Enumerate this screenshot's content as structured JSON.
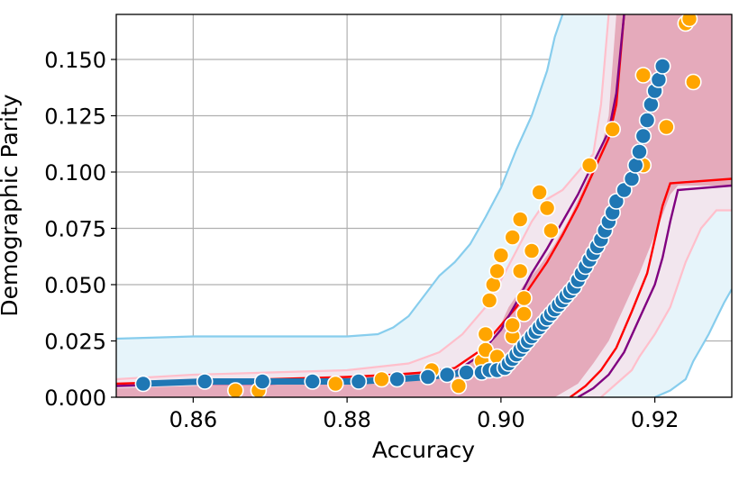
{
  "chart_data": {
    "type": "scatter",
    "title": "",
    "xlabel": "Accuracy",
    "ylabel": "Demographic Parity",
    "xlim": [
      0.85,
      0.93
    ],
    "ylim": [
      0.0,
      0.17
    ],
    "xticks": [
      "0.86",
      "0.88",
      "0.90",
      "0.92"
    ],
    "yticks": [
      "0.000",
      "0.025",
      "0.050",
      "0.075",
      "0.100",
      "0.125",
      "0.150"
    ],
    "grid": true,
    "colors": {
      "outer_band_fill": "#e6f4fa",
      "outer_band_line": "#87cded",
      "mid_band_fill": "#f2e6ee",
      "mid_band_line": "#ffbfcb",
      "inner_band_fill": "#e5aabb",
      "red_line": "#ff0000",
      "purple_line": "#800080",
      "blue_points": "#1f77b4",
      "orange_points": "#ffa500"
    },
    "bands": [
      {
        "id": "outer",
        "upper": [
          [
            0.85,
            0.026
          ],
          [
            0.86,
            0.027
          ],
          [
            0.87,
            0.027
          ],
          [
            0.88,
            0.027
          ],
          [
            0.884,
            0.028
          ],
          [
            0.886,
            0.031
          ],
          [
            0.888,
            0.036
          ],
          [
            0.89,
            0.045
          ],
          [
            0.892,
            0.054
          ],
          [
            0.894,
            0.06
          ],
          [
            0.896,
            0.068
          ],
          [
            0.898,
            0.08
          ],
          [
            0.9,
            0.093
          ],
          [
            0.902,
            0.11
          ],
          [
            0.904,
            0.125
          ],
          [
            0.906,
            0.145
          ],
          [
            0.907,
            0.16
          ],
          [
            0.908,
            0.17
          ]
        ],
        "lower": [
          [
            0.92,
            0.0
          ],
          [
            0.922,
            0.003
          ],
          [
            0.924,
            0.008
          ],
          [
            0.925,
            0.016
          ],
          [
            0.926,
            0.022
          ],
          [
            0.927,
            0.028
          ],
          [
            0.928,
            0.035
          ],
          [
            0.929,
            0.042
          ],
          [
            0.93,
            0.048
          ]
        ]
      },
      {
        "id": "middle",
        "upper": [
          [
            0.85,
            0.008
          ],
          [
            0.86,
            0.01
          ],
          [
            0.87,
            0.011
          ],
          [
            0.88,
            0.012
          ],
          [
            0.888,
            0.015
          ],
          [
            0.892,
            0.02
          ],
          [
            0.895,
            0.028
          ],
          [
            0.898,
            0.04
          ],
          [
            0.9,
            0.052
          ],
          [
            0.902,
            0.065
          ],
          [
            0.904,
            0.078
          ],
          [
            0.906,
            0.088
          ],
          [
            0.908,
            0.092
          ],
          [
            0.91,
            0.1
          ],
          [
            0.912,
            0.108
          ],
          [
            0.913,
            0.13
          ],
          [
            0.914,
            0.17
          ]
        ],
        "lower": [
          [
            0.913,
            0.0
          ],
          [
            0.915,
            0.006
          ],
          [
            0.917,
            0.012
          ],
          [
            0.918,
            0.018
          ],
          [
            0.92,
            0.028
          ],
          [
            0.922,
            0.04
          ],
          [
            0.924,
            0.06
          ],
          [
            0.926,
            0.075
          ],
          [
            0.928,
            0.083
          ],
          [
            0.93,
            0.083
          ]
        ]
      },
      {
        "id": "inner",
        "upper": [
          [
            0.85,
            0.004
          ],
          [
            0.86,
            0.005
          ],
          [
            0.87,
            0.007
          ],
          [
            0.88,
            0.009
          ],
          [
            0.888,
            0.011
          ],
          [
            0.894,
            0.012
          ],
          [
            0.897,
            0.018
          ],
          [
            0.899,
            0.025
          ],
          [
            0.901,
            0.04
          ],
          [
            0.903,
            0.05
          ],
          [
            0.905,
            0.058
          ],
          [
            0.907,
            0.068
          ],
          [
            0.909,
            0.08
          ],
          [
            0.911,
            0.095
          ],
          [
            0.913,
            0.11
          ],
          [
            0.914,
            0.125
          ],
          [
            0.915,
            0.17
          ]
        ],
        "lower": [
          [
            0.907,
            0.0
          ],
          [
            0.91,
            0.006
          ],
          [
            0.912,
            0.015
          ],
          [
            0.914,
            0.025
          ],
          [
            0.916,
            0.04
          ],
          [
            0.918,
            0.055
          ],
          [
            0.92,
            0.072
          ],
          [
            0.922,
            0.09
          ],
          [
            0.923,
            0.094
          ],
          [
            0.93,
            0.094
          ]
        ]
      }
    ],
    "lines": [
      {
        "id": "red-upper",
        "color": "#ff0000",
        "points": [
          [
            0.85,
            0.006
          ],
          [
            0.86,
            0.007
          ],
          [
            0.87,
            0.008
          ],
          [
            0.88,
            0.009
          ],
          [
            0.886,
            0.01
          ],
          [
            0.89,
            0.011
          ],
          [
            0.894,
            0.013
          ],
          [
            0.897,
            0.02
          ],
          [
            0.899,
            0.028
          ],
          [
            0.9,
            0.032
          ],
          [
            0.902,
            0.04
          ],
          [
            0.904,
            0.05
          ],
          [
            0.906,
            0.06
          ],
          [
            0.908,
            0.072
          ],
          [
            0.91,
            0.085
          ],
          [
            0.912,
            0.1
          ],
          [
            0.914,
            0.115
          ],
          [
            0.915,
            0.13
          ],
          [
            0.916,
            0.17
          ]
        ]
      },
      {
        "id": "purple-upper",
        "color": "#800080",
        "points": [
          [
            0.85,
            0.005
          ],
          [
            0.86,
            0.006
          ],
          [
            0.87,
            0.006
          ],
          [
            0.88,
            0.007
          ],
          [
            0.886,
            0.008
          ],
          [
            0.89,
            0.009
          ],
          [
            0.894,
            0.011
          ],
          [
            0.897,
            0.018
          ],
          [
            0.899,
            0.026
          ],
          [
            0.9,
            0.03
          ],
          [
            0.902,
            0.042
          ],
          [
            0.904,
            0.055
          ],
          [
            0.906,
            0.066
          ],
          [
            0.908,
            0.078
          ],
          [
            0.91,
            0.09
          ],
          [
            0.912,
            0.104
          ],
          [
            0.914,
            0.118
          ],
          [
            0.915,
            0.135
          ],
          [
            0.916,
            0.17
          ]
        ]
      },
      {
        "id": "red-lower",
        "color": "#ff0000",
        "points": [
          [
            0.909,
            0.0
          ],
          [
            0.911,
            0.005
          ],
          [
            0.913,
            0.012
          ],
          [
            0.915,
            0.022
          ],
          [
            0.917,
            0.038
          ],
          [
            0.919,
            0.055
          ],
          [
            0.92,
            0.07
          ],
          [
            0.921,
            0.085
          ],
          [
            0.922,
            0.095
          ],
          [
            0.93,
            0.097
          ]
        ]
      },
      {
        "id": "purple-lower",
        "color": "#800080",
        "points": [
          [
            0.91,
            0.0
          ],
          [
            0.912,
            0.004
          ],
          [
            0.914,
            0.01
          ],
          [
            0.916,
            0.02
          ],
          [
            0.918,
            0.035
          ],
          [
            0.92,
            0.05
          ],
          [
            0.921,
            0.062
          ],
          [
            0.922,
            0.078
          ],
          [
            0.923,
            0.092
          ],
          [
            0.93,
            0.094
          ]
        ]
      }
    ],
    "series": [
      {
        "color": "#ffa500",
        "points": [
          [
            0.8655,
            0.003
          ],
          [
            0.8685,
            0.003
          ],
          [
            0.8785,
            0.006
          ],
          [
            0.8845,
            0.008
          ],
          [
            0.891,
            0.012
          ],
          [
            0.8945,
            0.005
          ],
          [
            0.8975,
            0.016
          ],
          [
            0.898,
            0.021
          ],
          [
            0.898,
            0.028
          ],
          [
            0.8985,
            0.012
          ],
          [
            0.8995,
            0.018
          ],
          [
            0.8985,
            0.043
          ],
          [
            0.899,
            0.05
          ],
          [
            0.8995,
            0.056
          ],
          [
            0.9,
            0.063
          ],
          [
            0.9015,
            0.027
          ],
          [
            0.9015,
            0.032
          ],
          [
            0.9015,
            0.071
          ],
          [
            0.9025,
            0.079
          ],
          [
            0.9025,
            0.056
          ],
          [
            0.903,
            0.044
          ],
          [
            0.903,
            0.037
          ],
          [
            0.904,
            0.065
          ],
          [
            0.905,
            0.091
          ],
          [
            0.906,
            0.084
          ],
          [
            0.9065,
            0.074
          ],
          [
            0.9115,
            0.103
          ],
          [
            0.9145,
            0.119
          ],
          [
            0.9185,
            0.143
          ],
          [
            0.9185,
            0.103
          ],
          [
            0.9215,
            0.12
          ],
          [
            0.924,
            0.166
          ],
          [
            0.9245,
            0.168
          ],
          [
            0.925,
            0.14
          ]
        ]
      },
      {
        "color": "#1f77b4",
        "points": [
          [
            0.8535,
            0.006
          ],
          [
            0.8615,
            0.007
          ],
          [
            0.869,
            0.007
          ],
          [
            0.8755,
            0.007
          ],
          [
            0.8815,
            0.007
          ],
          [
            0.8865,
            0.008
          ],
          [
            0.8905,
            0.009
          ],
          [
            0.893,
            0.01
          ],
          [
            0.8955,
            0.011
          ],
          [
            0.8975,
            0.011
          ],
          [
            0.8985,
            0.012
          ],
          [
            0.8995,
            0.012
          ],
          [
            0.9005,
            0.013
          ],
          [
            0.901,
            0.015
          ],
          [
            0.9015,
            0.017
          ],
          [
            0.902,
            0.019
          ],
          [
            0.9025,
            0.021
          ],
          [
            0.903,
            0.023
          ],
          [
            0.9035,
            0.025
          ],
          [
            0.904,
            0.027
          ],
          [
            0.9045,
            0.029
          ],
          [
            0.905,
            0.031
          ],
          [
            0.9055,
            0.033
          ],
          [
            0.906,
            0.035
          ],
          [
            0.9065,
            0.037
          ],
          [
            0.907,
            0.039
          ],
          [
            0.9075,
            0.041
          ],
          [
            0.908,
            0.043
          ],
          [
            0.9085,
            0.045
          ],
          [
            0.909,
            0.047
          ],
          [
            0.9095,
            0.049
          ],
          [
            0.91,
            0.052
          ],
          [
            0.9105,
            0.055
          ],
          [
            0.911,
            0.058
          ],
          [
            0.9115,
            0.061
          ],
          [
            0.912,
            0.064
          ],
          [
            0.9125,
            0.067
          ],
          [
            0.913,
            0.07
          ],
          [
            0.9135,
            0.074
          ],
          [
            0.914,
            0.078
          ],
          [
            0.9145,
            0.082
          ],
          [
            0.915,
            0.087
          ],
          [
            0.916,
            0.092
          ],
          [
            0.917,
            0.097
          ],
          [
            0.9175,
            0.103
          ],
          [
            0.918,
            0.109
          ],
          [
            0.9185,
            0.116
          ],
          [
            0.919,
            0.123
          ],
          [
            0.9195,
            0.13
          ],
          [
            0.92,
            0.136
          ],
          [
            0.9205,
            0.141
          ],
          [
            0.921,
            0.147
          ]
        ]
      }
    ]
  }
}
